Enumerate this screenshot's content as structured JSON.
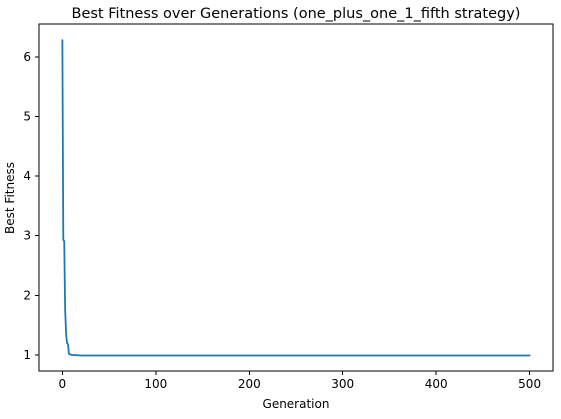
{
  "chart_data": {
    "type": "line",
    "title": "Best Fitness over Generations (one_plus_one_1_fifth strategy)",
    "xlabel": "Generation",
    "ylabel": "Best Fitness",
    "xlim": [
      -25,
      525
    ],
    "ylim": [
      0.73,
      6.55
    ],
    "x_ticks": [
      0,
      100,
      200,
      300,
      400,
      500
    ],
    "y_ticks": [
      1,
      2,
      3,
      4,
      5,
      6
    ],
    "grid": false,
    "legend": "none",
    "line_color": "#1f77b4",
    "series": [
      {
        "x": [
          0,
          1,
          2,
          3,
          4,
          5,
          6,
          7,
          8,
          10,
          15,
          20,
          30,
          50,
          100,
          200,
          300,
          400,
          500
        ],
        "values": [
          6.28,
          2.93,
          2.91,
          1.75,
          1.35,
          1.2,
          1.18,
          1.02,
          1.01,
          1.0,
          0.995,
          0.99,
          0.99,
          0.99,
          0.99,
          0.99,
          0.99,
          0.99,
          0.99
        ]
      }
    ]
  }
}
